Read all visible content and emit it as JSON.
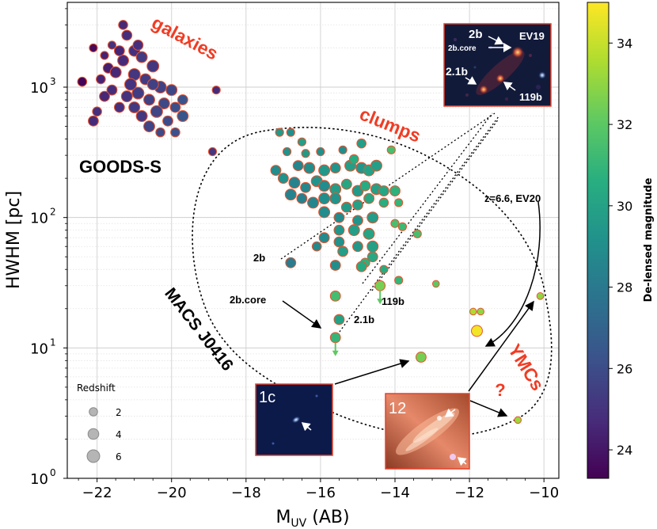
{
  "chart_data": {
    "type": "scatter",
    "title": "",
    "xlabel_main": "M",
    "xlabel_sub": "UV",
    "xlabel_tail": " (AB)",
    "ylabel": "HWHM [pc]",
    "xlim": [
      -22.8,
      -9.6
    ],
    "ylim_log10": [
      0,
      3.65
    ],
    "x_ticks": [
      -22,
      -20,
      -18,
      -16,
      -14,
      -12,
      -10
    ],
    "x_tick_labels": [
      "−22",
      "−20",
      "−18",
      "−16",
      "−14",
      "−12",
      "−10"
    ],
    "y_ticks_log10": [
      0,
      1,
      2,
      3
    ],
    "y_tick_labels": [
      {
        "base": "10",
        "exp": "0"
      },
      {
        "base": "10",
        "exp": "1"
      },
      {
        "base": "10",
        "exp": "2"
      },
      {
        "base": "10",
        "exp": "3"
      }
    ],
    "grid": true,
    "colorbar": {
      "label": "De-lensed magnitude",
      "min": 23.3,
      "max": 35.0,
      "ticks": [
        24,
        26,
        28,
        30,
        32,
        34
      ]
    },
    "redshift_legend": {
      "title": "Redshift",
      "entries": [
        {
          "label": "2",
          "z": 2
        },
        {
          "label": "4",
          "z": 4
        },
        {
          "label": "6",
          "z": 6
        }
      ]
    },
    "series": [
      {
        "name": "GOODS-S galaxies",
        "points": [
          [
            -22.4,
            1100,
            23.4,
            4
          ],
          [
            -22.1,
            2000,
            23.6,
            3
          ],
          [
            -21.8,
            1750,
            24.4,
            3
          ],
          [
            -21.6,
            2100,
            25.0,
            3
          ],
          [
            -21.3,
            3000,
            24.6,
            4
          ],
          [
            -21.2,
            2500,
            24.8,
            5
          ],
          [
            -21.0,
            1900,
            24.9,
            6
          ],
          [
            -20.8,
            1700,
            25.4,
            6
          ],
          [
            -20.5,
            1450,
            25.2,
            7
          ],
          [
            -21.7,
            1400,
            24.3,
            5
          ],
          [
            -21.5,
            1300,
            24.6,
            6
          ],
          [
            -21.3,
            1600,
            24.7,
            6
          ],
          [
            -21.0,
            1250,
            25.1,
            7
          ],
          [
            -20.7,
            1150,
            25.3,
            6
          ],
          [
            -20.3,
            1000,
            25.6,
            7
          ],
          [
            -21.9,
            1150,
            24.5,
            4
          ],
          [
            -21.6,
            950,
            24.8,
            5
          ],
          [
            -21.2,
            850,
            25.0,
            6
          ],
          [
            -20.9,
            900,
            25.4,
            7
          ],
          [
            -20.6,
            800,
            25.5,
            6
          ],
          [
            -20.2,
            750,
            25.9,
            6
          ],
          [
            -19.9,
            700,
            26.1,
            5
          ],
          [
            -20.0,
            950,
            25.8,
            6
          ],
          [
            -19.7,
            800,
            26.3,
            5
          ],
          [
            -20.4,
            650,
            25.7,
            7
          ],
          [
            -20.8,
            600,
            25.2,
            6
          ],
          [
            -21.4,
            700,
            24.9,
            5
          ],
          [
            -22.0,
            650,
            24.8,
            4
          ],
          [
            -22.1,
            550,
            24.7,
            5
          ],
          [
            -19.7,
            600,
            26.4,
            6
          ],
          [
            -21.8,
            850,
            24.6,
            5
          ],
          [
            -21.1,
            1050,
            25.0,
            7
          ],
          [
            -20.5,
            1050,
            25.5,
            6
          ],
          [
            -21.0,
            700,
            25.3,
            6
          ],
          [
            -20.1,
            550,
            26.0,
            5
          ],
          [
            -20.6,
            500,
            25.7,
            6
          ],
          [
            -20.3,
            450,
            25.9,
            4
          ],
          [
            -19.9,
            450,
            26.2,
            4
          ],
          [
            -21.4,
            1900,
            24.5,
            5
          ],
          [
            -20.9,
            2100,
            24.9,
            5
          ],
          [
            -18.8,
            950,
            24.7,
            3
          ],
          [
            -18.9,
            320,
            25.1,
            3
          ]
        ]
      },
      {
        "name": "MACS J0416 clumps",
        "points": [
          [
            -17.1,
            450,
            29.5,
            3
          ],
          [
            -16.8,
            450,
            29.0,
            3
          ],
          [
            -16.5,
            380,
            29.8,
            3
          ],
          [
            -16.9,
            320,
            29.2,
            3
          ],
          [
            -16.4,
            310,
            29.6,
            3
          ],
          [
            -16.0,
            320,
            29.1,
            3
          ],
          [
            -15.4,
            330,
            29.0,
            3
          ],
          [
            -14.9,
            370,
            29.8,
            4
          ],
          [
            -14.1,
            330,
            31.5,
            3
          ],
          [
            -16.6,
            250,
            28.6,
            5
          ],
          [
            -16.3,
            240,
            29.0,
            6
          ],
          [
            -15.9,
            230,
            29.5,
            6
          ],
          [
            -15.6,
            240,
            29.3,
            5
          ],
          [
            -15.2,
            250,
            29.8,
            6
          ],
          [
            -14.9,
            240,
            29.4,
            6
          ],
          [
            -14.7,
            230,
            30.0,
            6
          ],
          [
            -14.5,
            250,
            29.8,
            6
          ],
          [
            -15.1,
            280,
            30.5,
            4
          ],
          [
            -17.2,
            230,
            28.9,
            5
          ],
          [
            -17.0,
            200,
            29.2,
            5
          ],
          [
            -16.7,
            185,
            28.5,
            6
          ],
          [
            -16.4,
            170,
            28.7,
            5
          ],
          [
            -16.1,
            190,
            29.3,
            6
          ],
          [
            -15.9,
            175,
            28.9,
            6
          ],
          [
            -15.6,
            165,
            29.7,
            6
          ],
          [
            -15.3,
            180,
            30.2,
            5
          ],
          [
            -15.0,
            160,
            29.6,
            6
          ],
          [
            -14.8,
            175,
            30.5,
            5
          ],
          [
            -14.5,
            165,
            29.9,
            6
          ],
          [
            -14.3,
            160,
            30.2,
            5
          ],
          [
            -14.0,
            160,
            30.8,
            5
          ],
          [
            -16.8,
            150,
            28.5,
            6
          ],
          [
            -16.5,
            140,
            28.4,
            5
          ],
          [
            -16.2,
            130,
            28.6,
            6
          ],
          [
            -15.9,
            140,
            29.0,
            6
          ],
          [
            -15.6,
            140,
            29.3,
            6
          ],
          [
            -15.3,
            120,
            29.6,
            5
          ],
          [
            -15.0,
            125,
            29.9,
            5
          ],
          [
            -14.7,
            140,
            30.2,
            5
          ],
          [
            -14.3,
            130,
            30.6,
            4
          ],
          [
            -13.9,
            130,
            31.0,
            3
          ],
          [
            -15.9,
            110,
            28.9,
            6
          ],
          [
            -15.5,
            100,
            28.8,
            5
          ],
          [
            -15.0,
            95,
            29.3,
            5
          ],
          [
            -14.6,
            100,
            29.7,
            6
          ],
          [
            -15.5,
            80,
            29.4,
            5
          ],
          [
            -15.1,
            80,
            29.8,
            6
          ],
          [
            -14.7,
            75,
            30.1,
            6
          ],
          [
            -15.9,
            70,
            28.8,
            5
          ],
          [
            -15.5,
            65,
            29.2,
            5
          ],
          [
            -15.0,
            60,
            29.5,
            5
          ],
          [
            -14.6,
            60,
            29.9,
            6
          ],
          [
            -15.4,
            55,
            29.8,
            5
          ],
          [
            -14.6,
            50,
            30.3,
            5
          ],
          [
            -14.8,
            45,
            30.8,
            4
          ],
          [
            -16.1,
            60,
            28.8,
            4
          ],
          [
            -14.0,
            90,
            31.5,
            3
          ],
          [
            -13.8,
            85,
            31.2,
            3
          ],
          [
            -13.4,
            75,
            31.5,
            3
          ],
          [
            -14.3,
            40,
            30.5,
            3
          ],
          [
            -16.8,
            45,
            28.1,
            5
          ],
          [
            -15.6,
            43,
            29.0,
            5
          ],
          [
            -14.9,
            42,
            30.4,
            5
          ],
          [
            -15.6,
            25,
            31.4,
            5
          ],
          [
            -13.9,
            33,
            31.0,
            3
          ],
          [
            -15.5,
            16.5,
            30.0,
            5
          ],
          [
            -12.9,
            31,
            32.0,
            2
          ],
          [
            -13.3,
            8.5,
            32.5,
            5
          ],
          [
            -11.9,
            19,
            33.5,
            2
          ],
          [
            -11.7,
            19,
            33.0,
            2
          ],
          [
            -11.8,
            13.5,
            34.8,
            6
          ],
          [
            -10.1,
            25,
            33.0,
            2
          ],
          [
            -10.7,
            2.8,
            33.2,
            2
          ]
        ],
        "upper_limits": [
          [
            -15.6,
            12.0,
            31.0,
            5
          ],
          [
            -14.4,
            30.0,
            32.5,
            5
          ]
        ]
      }
    ],
    "annotations": {
      "galaxies": "galaxies",
      "clumps": "clumps",
      "goods": "GOODS-S",
      "macs": "MACS J0416",
      "ymcs": "YMCs",
      "qmark": "?",
      "ev20": "z=6.6, EV20",
      "lbl_2b": "2b",
      "lbl_2bcore": "2b.core",
      "lbl_119b": "119b",
      "lbl_21b": "2.1b"
    },
    "insets": {
      "ev19": {
        "title": "EV19",
        "labels": [
          "2b",
          "2b.core",
          "2.1b",
          "119b"
        ]
      },
      "c1": {
        "label": "1c"
      },
      "c12": {
        "label": "12"
      }
    }
  }
}
